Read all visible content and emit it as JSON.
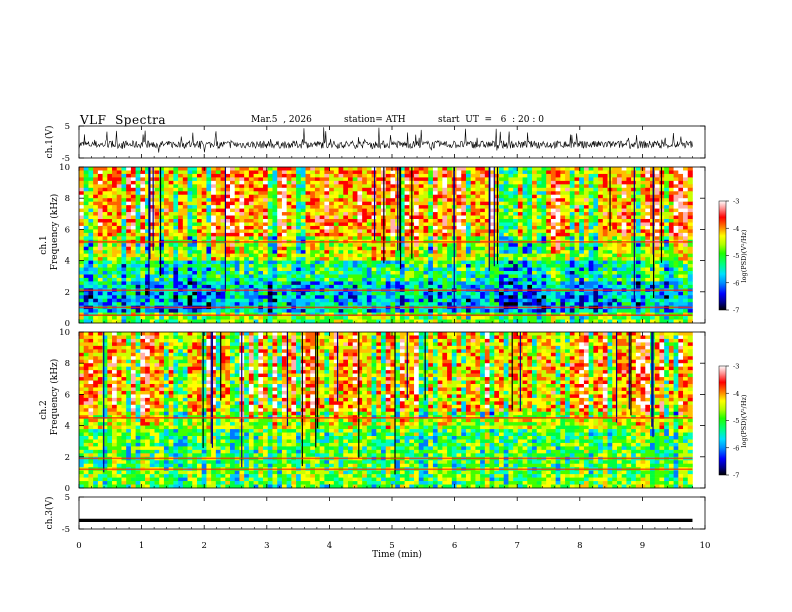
{
  "header": {
    "title": "VLF  Spectra",
    "date": "Mar.5  , 2026",
    "station": "station= ATH",
    "start": "start  UT  =   6  : 20 : 0"
  },
  "colors": {
    "ch1_trace": "#000000",
    "ch3_trace": "#000000",
    "colormap": [
      "#000000",
      "#00008b",
      "#0000ff",
      "#0078ff",
      "#00c8ff",
      "#00ffc0",
      "#00ff40",
      "#40ff00",
      "#c8ff00",
      "#ffff00",
      "#ffc000",
      "#ff6000",
      "#ff0000",
      "#ffb0b0",
      "#ffffff"
    ]
  },
  "chart_data": [
    {
      "type": "line",
      "name": "ch1-waveform",
      "ylabel": "ch.1(V)",
      "ylim": [
        -5,
        5
      ],
      "yticks": [
        "5",
        "-5"
      ],
      "xlim": [
        0,
        10
      ],
      "description_values": "noisy broadband waveform, mean about -0.8 V, peaks to about +4 V"
    },
    {
      "type": "heatmap",
      "name": "ch1-spectrogram",
      "ylabel": "ch.1",
      "ylabel2": "Frequency  (kHz)",
      "ylim": [
        0,
        10
      ],
      "yticks": [
        "0",
        "2",
        "4",
        "6",
        "8",
        "10"
      ],
      "xlim": [
        0,
        9.8
      ],
      "colorbar": {
        "label": "log(PSD)(V²/Hz)",
        "ticks": [
          "-3",
          "-4",
          "-5",
          "-6",
          "-7"
        ],
        "range": [
          -7,
          -3
        ]
      },
      "bands_khz": [
        {
          "from": 0,
          "to": 0.6,
          "level": -5.0
        },
        {
          "from": 0.6,
          "to": 2.6,
          "level": -5.8
        },
        {
          "from": 2.6,
          "to": 4.0,
          "level": -5.4
        },
        {
          "from": 4.0,
          "to": 5.5,
          "level": -4.7
        },
        {
          "from": 5.5,
          "to": 10,
          "level": -4.2
        }
      ],
      "lines_khz": [
        0.5,
        1.0,
        2.1,
        5.2
      ]
    },
    {
      "type": "heatmap",
      "name": "ch2-spectrogram",
      "ylabel": "ch.2",
      "ylabel2": "Frequency  (kHz)",
      "ylim": [
        0,
        10
      ],
      "yticks": [
        "0",
        "2",
        "4",
        "6",
        "8",
        "10"
      ],
      "xlim": [
        0,
        9.8
      ],
      "colorbar": {
        "label": "log(PSD)(V²/Hz)",
        "ticks": [
          "-3",
          "-4",
          "-5",
          "-6",
          "-7"
        ],
        "range": [
          -7,
          -3
        ]
      },
      "bands_khz": [
        {
          "from": 0,
          "to": 1.0,
          "level": -5.0
        },
        {
          "from": 1.0,
          "to": 3.8,
          "level": -5.1
        },
        {
          "from": 3.8,
          "to": 5.0,
          "level": -4.6
        },
        {
          "from": 5.0,
          "to": 10,
          "level": -4.2
        }
      ],
      "lines_khz": [
        1.2,
        1.9,
        4.5
      ]
    },
    {
      "type": "line",
      "name": "ch3-waveform",
      "ylabel": "ch.3(V)",
      "ylim": [
        -5,
        5
      ],
      "yticks": [
        "5",
        "-5"
      ],
      "xlim": [
        0,
        10
      ],
      "xlabel": "Time  (min)",
      "xticks": [
        "0",
        "1",
        "2",
        "3",
        "4",
        "5",
        "6",
        "7",
        "8",
        "9",
        "10"
      ],
      "level_v": -2.3
    }
  ]
}
